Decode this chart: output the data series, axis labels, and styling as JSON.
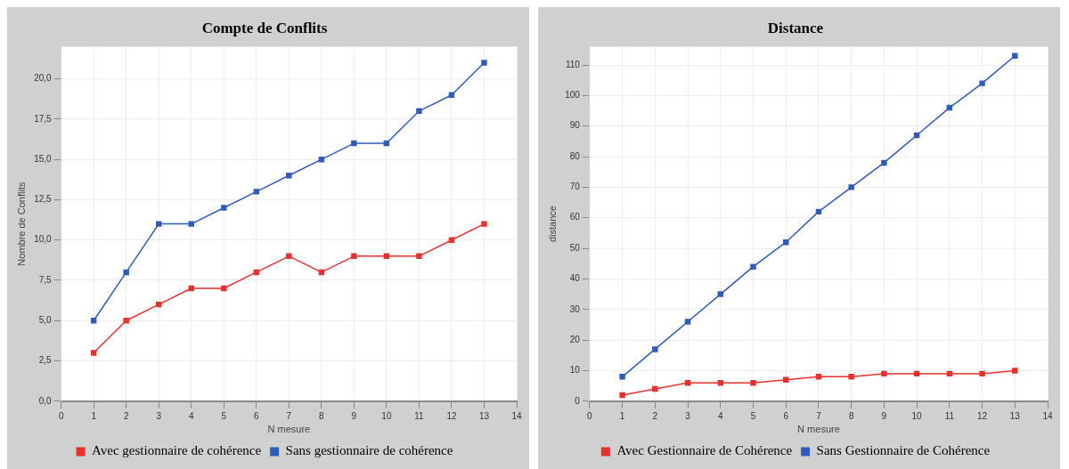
{
  "chart_data": [
    {
      "type": "line",
      "title": "Compte de Conflits",
      "xlabel": "N mesure",
      "ylabel": "Nombre de Conflits",
      "x": [
        1,
        2,
        3,
        4,
        5,
        6,
        7,
        8,
        9,
        10,
        11,
        12,
        13
      ],
      "series": [
        {
          "name": "Avec gestionnaire de cohérence",
          "color": "#e8312f",
          "values": [
            3,
            5,
            6,
            7,
            7,
            8,
            9,
            8,
            9,
            9,
            9,
            10,
            11
          ]
        },
        {
          "name": "Sans gestionnaire de cohérence",
          "color": "#2f5cb8",
          "values": [
            5,
            8,
            11,
            11,
            12,
            13,
            14,
            15,
            16,
            16,
            18,
            19,
            21
          ]
        }
      ],
      "xlim": [
        0,
        14
      ],
      "xticks": [
        0,
        1,
        2,
        3,
        4,
        5,
        6,
        7,
        8,
        9,
        10,
        11,
        12,
        13,
        14
      ],
      "ylim": [
        0,
        22
      ],
      "yticks": [
        {
          "value": 0,
          "label": "0,0"
        },
        {
          "value": 2.5,
          "label": "2,5"
        },
        {
          "value": 5,
          "label": "5,0"
        },
        {
          "value": 7.5,
          "label": "7,5"
        },
        {
          "value": 10,
          "label": "10,0"
        },
        {
          "value": 12.5,
          "label": "12,5"
        },
        {
          "value": 15,
          "label": "15,0"
        },
        {
          "value": 17.5,
          "label": "17,5"
        },
        {
          "value": 20,
          "label": "20,0"
        }
      ],
      "grid": true,
      "legend": "bottom",
      "marker": "square",
      "line_style": "solid"
    },
    {
      "type": "line",
      "title": "Distance",
      "xlabel": "N mesure",
      "ylabel": "distance",
      "x": [
        1,
        2,
        3,
        4,
        5,
        6,
        7,
        8,
        9,
        10,
        11,
        12,
        13
      ],
      "series": [
        {
          "name": "Avec Gestionnaire de Cohérence",
          "color": "#e8312f",
          "values": [
            2,
            4,
            6,
            6,
            6,
            7,
            8,
            8,
            9,
            9,
            9,
            9,
            10
          ]
        },
        {
          "name": "Sans Gestionnaire de Cohérence",
          "color": "#2f5cb8",
          "values": [
            8,
            17,
            26,
            35,
            44,
            52,
            62,
            70,
            78,
            87,
            96,
            104,
            113
          ]
        }
      ],
      "xlim": [
        0,
        14
      ],
      "xticks": [
        0,
        1,
        2,
        3,
        4,
        5,
        6,
        7,
        8,
        9,
        10,
        11,
        12,
        13,
        14
      ],
      "ylim": [
        0,
        116
      ],
      "yticks": [
        0,
        10,
        20,
        30,
        40,
        50,
        60,
        70,
        80,
        90,
        100,
        110
      ],
      "grid": true,
      "legend": "bottom",
      "marker": "square",
      "line_style": "solid"
    }
  ]
}
